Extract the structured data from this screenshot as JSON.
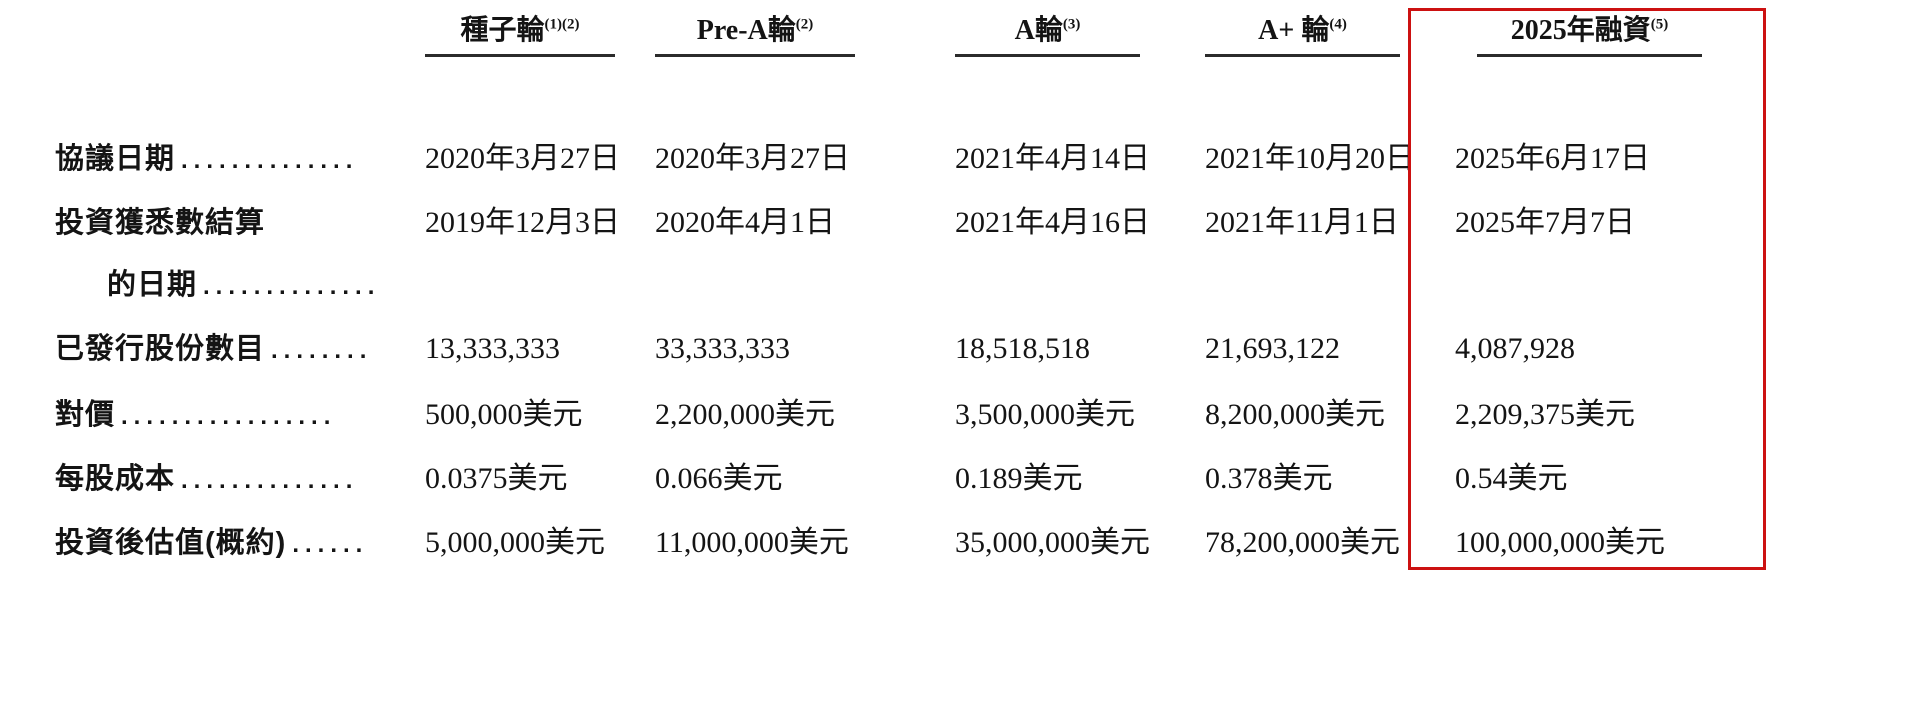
{
  "page": {
    "background": "#ffffff",
    "highlight_border_color": "#cc1111",
    "text_color": "#141414"
  },
  "table": {
    "columns": [
      {
        "title": "種子輪",
        "sup": "(1)(2)"
      },
      {
        "title": "Pre-A輪",
        "sup": "(2)"
      },
      {
        "title": "A輪",
        "sup": "(3)"
      },
      {
        "title": "A+ 輪",
        "sup": "(4)"
      },
      {
        "title": "2025年融資",
        "sup": "(5)",
        "highlighted": true
      }
    ],
    "rows": [
      {
        "label": "協議日期",
        "leader": "..............",
        "values": [
          "2020年3月27日",
          "2020年3月27日",
          "2021年4月14日",
          "2021年10月20日",
          "2025年6月17日"
        ]
      },
      {
        "label": "投資獲悉數結算",
        "leader": "",
        "values": [
          "2019年12月3日",
          "2020年4月1日",
          "2021年4月16日",
          "2021年11月1日",
          "2025年7月7日"
        ]
      },
      {
        "label": "的日期",
        "leader": "..............",
        "indent": true,
        "values": [
          "",
          "",
          "",
          "",
          ""
        ]
      },
      {
        "label": "已發行股份數目",
        "leader": "........",
        "values": [
          "13,333,333",
          "33,333,333",
          "18,518,518",
          "21,693,122",
          "4,087,928"
        ]
      },
      {
        "label": "對價",
        "leader": ".................",
        "values": [
          "500,000美元",
          "2,200,000美元",
          "3,500,000美元",
          "8,200,000美元",
          "2,209,375美元"
        ]
      },
      {
        "label": "每股成本",
        "leader": "..............",
        "values": [
          "0.0375美元",
          "0.066美元",
          "0.189美元",
          "0.378美元",
          "0.54美元"
        ]
      },
      {
        "label": "投資後估值(概約)",
        "leader": "......",
        "values": [
          "5,000,000美元",
          "11,000,000美元",
          "35,000,000美元",
          "78,200,000美元",
          "100,000,000美元"
        ]
      }
    ]
  }
}
